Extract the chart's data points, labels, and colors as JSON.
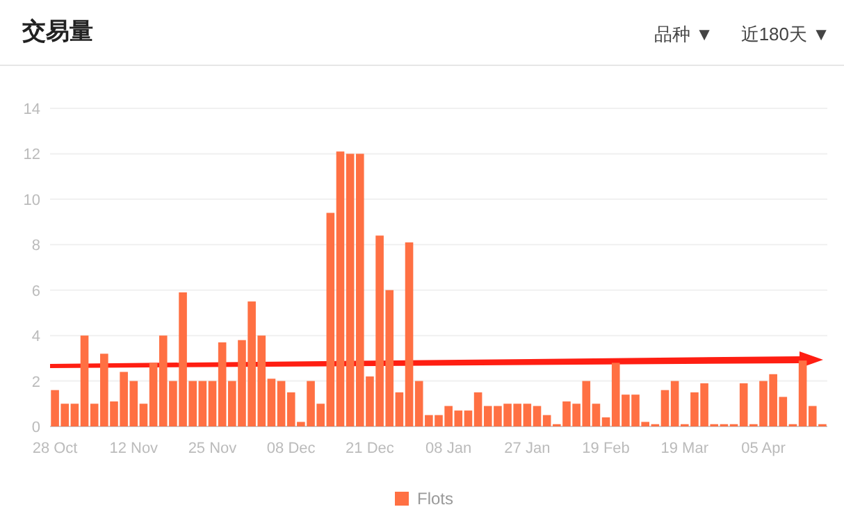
{
  "chart_data": {
    "type": "bar",
    "title": "交易量",
    "annotations": [
      "品种 ▼",
      "近180天 ▼"
    ],
    "categories": [
      "28 Oct",
      null,
      null,
      null,
      null,
      null,
      null,
      null,
      "12 Nov",
      null,
      null,
      null,
      null,
      null,
      null,
      null,
      "25 Nov",
      null,
      null,
      null,
      null,
      null,
      null,
      null,
      "08 Dec",
      null,
      null,
      null,
      null,
      null,
      null,
      null,
      "21 Dec",
      null,
      null,
      null,
      null,
      null,
      null,
      null,
      "08 Jan",
      null,
      null,
      null,
      null,
      null,
      null,
      null,
      "27 Jan",
      null,
      null,
      null,
      null,
      null,
      null,
      null,
      "19 Feb",
      null,
      null,
      null,
      null,
      null,
      null,
      null,
      "19 Mar",
      null,
      null,
      null,
      null,
      null,
      null,
      null,
      "05 Apr",
      null,
      null,
      null,
      null,
      null,
      null
    ],
    "series": [
      {
        "name": "Flots",
        "color": "#ff7043",
        "values": [
          1.6,
          1.0,
          1.0,
          4.0,
          1.0,
          3.2,
          1.1,
          2.4,
          2.0,
          1.0,
          2.8,
          4.0,
          2.0,
          5.9,
          2.0,
          2.0,
          2.0,
          3.7,
          2.0,
          3.8,
          5.5,
          4.0,
          2.1,
          2.0,
          1.5,
          0.2,
          2.0,
          1.0,
          9.4,
          12.1,
          12.0,
          12.0,
          2.2,
          8.4,
          6.0,
          1.5,
          8.1,
          2.0,
          0.5,
          0.5,
          0.9,
          0.7,
          0.7,
          1.5,
          0.9,
          0.9,
          1.0,
          1.0,
          1.0,
          0.9,
          0.5,
          0.1,
          1.1,
          1.0,
          2.0,
          1.0,
          0.4,
          2.8,
          1.4,
          1.4,
          0.2,
          0.1,
          1.6,
          2.0,
          0.1,
          1.5,
          1.9,
          0.1,
          0.1,
          0.1,
          1.9,
          0.1,
          2.0,
          2.3,
          1.3,
          0.1,
          2.9,
          0.9,
          0.1
        ]
      }
    ],
    "ylim": [
      0,
      14
    ],
    "yticks": [
      0,
      2,
      4,
      6,
      8,
      10,
      12,
      14
    ],
    "grid": "y",
    "legend": "bottom"
  }
}
